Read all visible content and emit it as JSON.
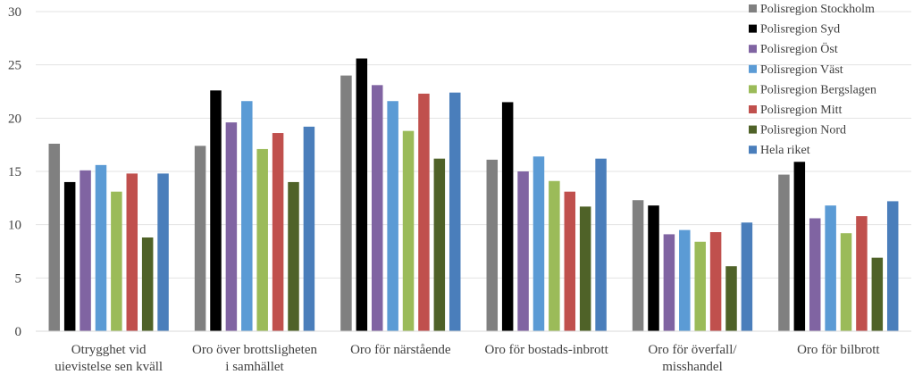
{
  "chart_data": {
    "type": "bar",
    "title": "",
    "xlabel": "",
    "ylabel": "",
    "ylim": [
      0,
      30
    ],
    "yticks": [
      0,
      5,
      10,
      15,
      20,
      25,
      30
    ],
    "grid": true,
    "legend_position": "top-right",
    "categories": [
      [
        "Otrygghet vid",
        "uievistelse sen kväll"
      ],
      [
        "Oro över brottsligheten",
        "i samhället"
      ],
      [
        "Oro för närstående"
      ],
      [
        "Oro för bostads-inbrott"
      ],
      [
        "Oro för överfall/",
        "misshandel"
      ],
      [
        "Oro för bilbrott"
      ]
    ],
    "series": [
      {
        "name": "Polisregion Stockholm",
        "color": "#808080",
        "values": [
          17.6,
          17.4,
          24.0,
          16.1,
          12.3,
          14.7
        ]
      },
      {
        "name": "Polisregion Syd",
        "color": "#000000",
        "values": [
          14.0,
          22.6,
          25.6,
          21.5,
          11.8,
          15.9
        ]
      },
      {
        "name": "Polisregion Öst",
        "color": "#8064a2",
        "values": [
          15.1,
          19.6,
          23.1,
          15.0,
          9.1,
          10.6
        ]
      },
      {
        "name": "Polisregion Väst",
        "color": "#5b9bd5",
        "values": [
          15.6,
          21.6,
          21.6,
          16.4,
          9.5,
          11.8
        ]
      },
      {
        "name": "Polisregion Bergslagen",
        "color": "#9bbb59",
        "values": [
          13.1,
          17.1,
          18.8,
          14.1,
          8.4,
          9.2
        ]
      },
      {
        "name": "Polisregion Mitt",
        "color": "#c0504d",
        "values": [
          14.8,
          18.6,
          22.3,
          13.1,
          9.3,
          10.8
        ]
      },
      {
        "name": "Polisregion Nord",
        "color": "#4f6228",
        "values": [
          8.8,
          14.0,
          16.2,
          11.7,
          6.1,
          6.9
        ]
      },
      {
        "name": "Hela riket",
        "color": "#4a7ebb",
        "values": [
          14.8,
          19.2,
          22.4,
          16.2,
          10.2,
          12.2
        ]
      }
    ]
  }
}
